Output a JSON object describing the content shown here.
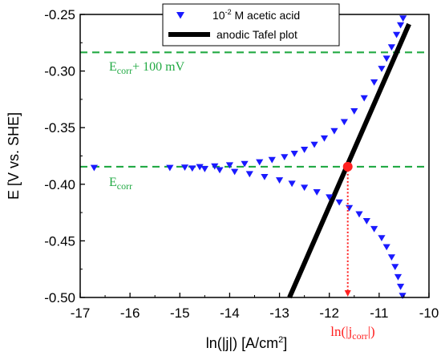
{
  "chart_data": {
    "type": "scatter",
    "xlabel_main": "ln(|j|) [A/cm",
    "xlabel_sup": "2",
    "xlabel_end": "]",
    "ylabel": "E [V vs. SHE]",
    "xlim": [
      -17,
      -10
    ],
    "ylim": [
      -0.5,
      -0.25
    ],
    "xticks": [
      -17,
      -16,
      -15,
      -14,
      -13,
      -12,
      -11,
      -10
    ],
    "yticks": [
      -0.5,
      -0.45,
      -0.4,
      -0.35,
      -0.3,
      -0.25
    ],
    "xtick_labels": [
      "-17",
      "-16",
      "-15",
      "-14",
      "-13",
      "-12",
      "-11",
      "-10"
    ],
    "ytick_labels": [
      "-0.50",
      "-0.45",
      "-0.40",
      "-0.35",
      "-0.30",
      "-0.25"
    ],
    "grid": false,
    "legend_position": "top-right",
    "series": [
      {
        "name_main": "10",
        "name_sup": "-2",
        "name_rest": " M acetic acid",
        "marker": "triangle-down",
        "color": "#1a1aff",
        "anodic_branch": [
          {
            "x": -16.72,
            "y": -0.3855
          },
          {
            "x": -15.2,
            "y": -0.3855
          },
          {
            "x": -14.9,
            "y": -0.3852
          },
          {
            "x": -14.6,
            "y": -0.3848
          },
          {
            "x": -14.3,
            "y": -0.3842
          },
          {
            "x": -14.0,
            "y": -0.3832
          },
          {
            "x": -13.7,
            "y": -0.382
          },
          {
            "x": -13.4,
            "y": -0.3805
          },
          {
            "x": -13.15,
            "y": -0.3785
          },
          {
            "x": -12.9,
            "y": -0.376
          },
          {
            "x": -12.7,
            "y": -0.373
          },
          {
            "x": -12.5,
            "y": -0.3695
          },
          {
            "x": -12.3,
            "y": -0.365
          },
          {
            "x": -12.1,
            "y": -0.3595
          },
          {
            "x": -11.9,
            "y": -0.353
          },
          {
            "x": -11.7,
            "y": -0.345
          },
          {
            "x": -11.5,
            "y": -0.3355
          },
          {
            "x": -11.3,
            "y": -0.324
          },
          {
            "x": -11.1,
            "y": -0.31
          },
          {
            "x": -10.95,
            "y": -0.298
          },
          {
            "x": -10.85,
            "y": -0.289
          },
          {
            "x": -10.75,
            "y": -0.279
          },
          {
            "x": -10.65,
            "y": -0.268
          },
          {
            "x": -10.57,
            "y": -0.2595
          },
          {
            "x": -10.52,
            "y": -0.2535
          }
        ],
        "cathodic_branch": [
          {
            "x": -14.75,
            "y": -0.386
          },
          {
            "x": -14.5,
            "y": -0.3865
          },
          {
            "x": -14.2,
            "y": -0.3875
          },
          {
            "x": -13.9,
            "y": -0.389
          },
          {
            "x": -13.6,
            "y": -0.391
          },
          {
            "x": -13.3,
            "y": -0.3935
          },
          {
            "x": -13.0,
            "y": -0.3965
          },
          {
            "x": -12.75,
            "y": -0.3995
          },
          {
            "x": -12.5,
            "y": -0.403
          },
          {
            "x": -12.25,
            "y": -0.407
          },
          {
            "x": -12.0,
            "y": -0.4115
          },
          {
            "x": -11.8,
            "y": -0.416
          },
          {
            "x": -11.6,
            "y": -0.421
          },
          {
            "x": -11.4,
            "y": -0.4265
          },
          {
            "x": -11.25,
            "y": -0.4325
          },
          {
            "x": -11.1,
            "y": -0.4395
          },
          {
            "x": -10.95,
            "y": -0.4475
          },
          {
            "x": -10.85,
            "y": -0.4555
          },
          {
            "x": -10.75,
            "y": -0.4645
          },
          {
            "x": -10.68,
            "y": -0.473
          },
          {
            "x": -10.62,
            "y": -0.482
          },
          {
            "x": -10.57,
            "y": -0.4905
          },
          {
            "x": -10.53,
            "y": -0.4985
          }
        ]
      },
      {
        "name": "anodic Tafel plot",
        "type": "line",
        "color": "#000000",
        "points": [
          {
            "x": -12.8,
            "y": -0.5
          },
          {
            "x": -10.4,
            "y": -0.2585
          }
        ]
      }
    ],
    "reference_lines": [
      {
        "y": -0.2835,
        "label_main": "E",
        "label_sub": "corr",
        "label_rest": "+ 100 mV",
        "color": "#22aa44"
      },
      {
        "y": -0.3845,
        "label_main": "E",
        "label_sub": "corr",
        "label_rest": "",
        "color": "#22aa44"
      }
    ],
    "corrosion_point": {
      "x": -11.63,
      "y": -0.3845,
      "color": "#ff2020"
    },
    "corrosion_annotation": {
      "main": "ln(|j",
      "sub": "corr",
      "end": "|)",
      "color": "#ff2020"
    }
  }
}
